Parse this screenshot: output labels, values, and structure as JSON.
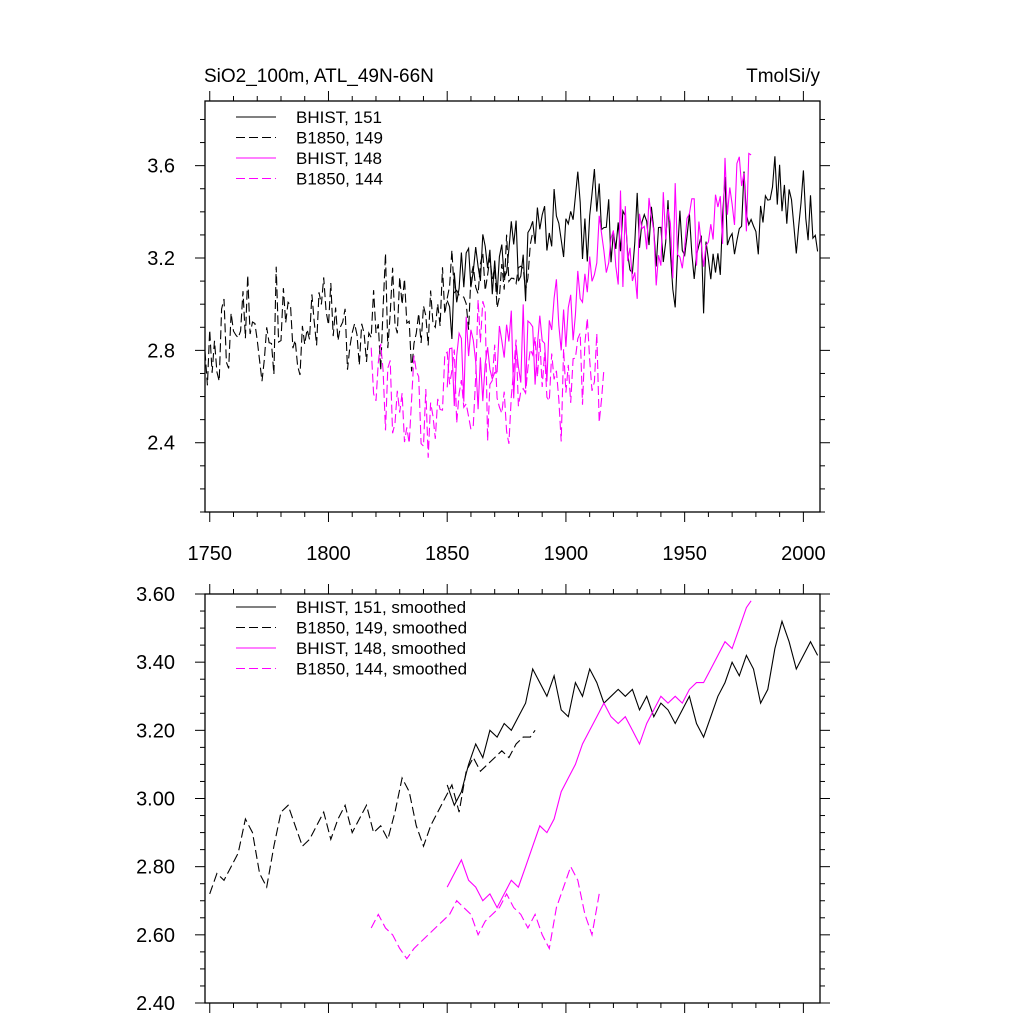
{
  "chart_data": [
    {
      "type": "line",
      "title": "SiO2_100m, ATL_49N-66N",
      "units": "TmolSi/y",
      "xlim": [
        1748,
        2007
      ],
      "ylim": [
        2.1,
        3.88
      ],
      "x_ticks": [
        1750,
        1800,
        1850,
        1900,
        1950,
        2000
      ],
      "y_ticks": [
        2.4,
        2.8,
        3.2,
        3.6
      ],
      "y_tick_labels": [
        "2.4",
        "2.8",
        "3.2",
        "3.6"
      ],
      "legend": [
        {
          "label": "BHIST, 151",
          "color": "#000000",
          "dash": "solid"
        },
        {
          "label": "B1850, 149",
          "color": "#000000",
          "dash": "dashed"
        },
        {
          "label": "BHIST, 148",
          "color": "#ff00ff",
          "dash": "solid"
        },
        {
          "label": "B1850, 144",
          "color": "#ff00ff",
          "dash": "dashed"
        }
      ],
      "series": [
        {
          "name": "BHIST, 151",
          "color": "#000000",
          "dash": "solid",
          "x_start": 1850,
          "x_end": 2006,
          "variability": 0.16,
          "anchors_x": [
            1850,
            1860,
            1870,
            1880,
            1890,
            1900,
            1910,
            1920,
            1930,
            1940,
            1950,
            1960,
            1970,
            1980,
            1990,
            2000,
            2006
          ],
          "anchors_y": [
            2.98,
            3.18,
            3.2,
            3.22,
            3.34,
            3.3,
            3.38,
            3.3,
            3.33,
            3.28,
            3.25,
            3.24,
            3.32,
            3.34,
            3.45,
            3.42,
            3.4
          ]
        },
        {
          "name": "B1850, 149",
          "color": "#000000",
          "dash": "dashed",
          "x_start": 1748,
          "x_end": 1886,
          "variability": 0.16,
          "anchors_x": [
            1748,
            1755,
            1765,
            1770,
            1780,
            1790,
            1800,
            1810,
            1820,
            1830,
            1835,
            1840,
            1850,
            1860,
            1870,
            1880,
            1886
          ],
          "anchors_y": [
            2.72,
            2.78,
            2.94,
            2.76,
            2.96,
            2.88,
            2.95,
            2.9,
            2.92,
            3.05,
            2.88,
            2.9,
            3.02,
            3.08,
            3.12,
            3.18,
            3.2
          ]
        },
        {
          "name": "BHIST, 148",
          "color": "#ff00ff",
          "dash": "solid",
          "x_start": 1850,
          "x_end": 1978,
          "variability": 0.17,
          "anchors_x": [
            1850,
            1860,
            1870,
            1880,
            1890,
            1900,
            1910,
            1920,
            1930,
            1940,
            1950,
            1960,
            1970,
            1978
          ],
          "anchors_y": [
            2.74,
            2.78,
            2.72,
            2.75,
            2.88,
            2.95,
            3.18,
            3.24,
            3.2,
            3.3,
            3.3,
            3.36,
            3.45,
            3.58
          ]
        },
        {
          "name": "B1850, 144",
          "color": "#ff00ff",
          "dash": "dashed",
          "x_start": 1818,
          "x_end": 1916,
          "variability": 0.2,
          "anchors_x": [
            1818,
            1825,
            1835,
            1845,
            1855,
            1865,
            1875,
            1885,
            1895,
            1905,
            1910,
            1916
          ],
          "anchors_y": [
            2.62,
            2.64,
            2.56,
            2.62,
            2.66,
            2.68,
            2.66,
            2.7,
            2.64,
            2.78,
            2.66,
            2.72
          ]
        }
      ]
    },
    {
      "type": "line",
      "title": "",
      "xlim": [
        1748,
        2007
      ],
      "ylim": [
        2.4,
        3.6
      ],
      "x_ticks": [
        1750,
        1800,
        1850,
        1900,
        1950,
        2000
      ],
      "y_ticks": [
        2.4,
        2.6,
        2.8,
        3.0,
        3.2,
        3.4,
        3.6
      ],
      "y_tick_labels": [
        "2.40",
        "2.60",
        "2.80",
        "3.00",
        "3.20",
        "3.40",
        "3.60"
      ],
      "legend": [
        {
          "label": "BHIST, 151, smoothed",
          "color": "#000000",
          "dash": "solid"
        },
        {
          "label": "B1850, 149, smoothed",
          "color": "#000000",
          "dash": "dashed"
        },
        {
          "label": "BHIST, 148, smoothed",
          "color": "#ff00ff",
          "dash": "solid"
        },
        {
          "label": "B1850, 144, smoothed",
          "color": "#ff00ff",
          "dash": "dashed"
        }
      ],
      "series": [
        {
          "name": "BHIST, 151, smoothed",
          "color": "#000000",
          "dash": "solid",
          "x": [
            1850,
            1853,
            1856,
            1859,
            1862,
            1865,
            1868,
            1871,
            1874,
            1877,
            1880,
            1883,
            1886,
            1889,
            1892,
            1895,
            1898,
            1901,
            1904,
            1907,
            1910,
            1913,
            1916,
            1919,
            1922,
            1925,
            1928,
            1931,
            1934,
            1937,
            1940,
            1943,
            1946,
            1949,
            1952,
            1955,
            1958,
            1961,
            1964,
            1967,
            1970,
            1973,
            1976,
            1979,
            1982,
            1985,
            1988,
            1991,
            1994,
            1997,
            2000,
            2003,
            2006
          ],
          "y": [
            3.04,
            2.98,
            3.02,
            3.1,
            3.16,
            3.12,
            3.2,
            3.18,
            3.22,
            3.2,
            3.24,
            3.28,
            3.38,
            3.34,
            3.3,
            3.36,
            3.26,
            3.24,
            3.34,
            3.3,
            3.38,
            3.34,
            3.28,
            3.3,
            3.32,
            3.3,
            3.32,
            3.26,
            3.3,
            3.24,
            3.28,
            3.26,
            3.22,
            3.26,
            3.3,
            3.22,
            3.18,
            3.24,
            3.3,
            3.34,
            3.4,
            3.36,
            3.42,
            3.38,
            3.28,
            3.32,
            3.44,
            3.52,
            3.46,
            3.38,
            3.42,
            3.46,
            3.42
          ]
        },
        {
          "name": "B1850, 149, smoothed",
          "color": "#000000",
          "dash": "dashed",
          "x": [
            1750,
            1753,
            1756,
            1759,
            1762,
            1765,
            1768,
            1771,
            1774,
            1777,
            1780,
            1783,
            1786,
            1789,
            1792,
            1795,
            1798,
            1801,
            1804,
            1807,
            1810,
            1813,
            1816,
            1819,
            1822,
            1825,
            1828,
            1831,
            1834,
            1837,
            1840,
            1843,
            1846,
            1849,
            1852,
            1855,
            1858,
            1861,
            1864,
            1867,
            1870,
            1873,
            1876,
            1879,
            1882,
            1885,
            1887
          ],
          "y": [
            2.72,
            2.78,
            2.76,
            2.8,
            2.84,
            2.94,
            2.9,
            2.78,
            2.74,
            2.86,
            2.96,
            2.98,
            2.92,
            2.86,
            2.88,
            2.92,
            2.96,
            2.88,
            2.94,
            2.98,
            2.9,
            2.94,
            2.98,
            2.9,
            2.92,
            2.88,
            2.96,
            3.06,
            3.02,
            2.92,
            2.86,
            2.92,
            2.96,
            3.0,
            3.04,
            2.96,
            3.08,
            3.12,
            3.08,
            3.1,
            3.12,
            3.14,
            3.12,
            3.16,
            3.18,
            3.18,
            3.2
          ]
        },
        {
          "name": "BHIST, 148, smoothed",
          "color": "#ff00ff",
          "dash": "solid",
          "x": [
            1850,
            1853,
            1856,
            1859,
            1862,
            1865,
            1868,
            1871,
            1874,
            1877,
            1880,
            1883,
            1886,
            1889,
            1892,
            1895,
            1898,
            1901,
            1904,
            1907,
            1910,
            1913,
            1916,
            1919,
            1922,
            1925,
            1928,
            1931,
            1934,
            1937,
            1940,
            1943,
            1946,
            1949,
            1952,
            1955,
            1958,
            1961,
            1964,
            1967,
            1970,
            1973,
            1976,
            1978
          ],
          "y": [
            2.74,
            2.78,
            2.82,
            2.76,
            2.74,
            2.7,
            2.72,
            2.68,
            2.72,
            2.76,
            2.74,
            2.8,
            2.86,
            2.92,
            2.9,
            2.94,
            3.02,
            3.06,
            3.1,
            3.16,
            3.2,
            3.24,
            3.28,
            3.24,
            3.22,
            3.24,
            3.2,
            3.16,
            3.22,
            3.26,
            3.3,
            3.28,
            3.3,
            3.28,
            3.32,
            3.34,
            3.34,
            3.38,
            3.42,
            3.46,
            3.44,
            3.5,
            3.56,
            3.58
          ]
        },
        {
          "name": "B1850, 144, smoothed",
          "color": "#ff00ff",
          "dash": "dashed",
          "x": [
            1818,
            1821,
            1824,
            1827,
            1830,
            1833,
            1836,
            1839,
            1842,
            1845,
            1848,
            1851,
            1854,
            1857,
            1860,
            1863,
            1866,
            1869,
            1872,
            1875,
            1878,
            1881,
            1884,
            1887,
            1890,
            1893,
            1896,
            1899,
            1902,
            1905,
            1908,
            1911,
            1914
          ],
          "y": [
            2.62,
            2.66,
            2.62,
            2.6,
            2.56,
            2.53,
            2.56,
            2.58,
            2.6,
            2.62,
            2.64,
            2.66,
            2.7,
            2.68,
            2.66,
            2.6,
            2.64,
            2.66,
            2.68,
            2.72,
            2.68,
            2.66,
            2.62,
            2.66,
            2.6,
            2.56,
            2.68,
            2.74,
            2.8,
            2.76,
            2.66,
            2.6,
            2.72
          ]
        }
      ]
    }
  ]
}
